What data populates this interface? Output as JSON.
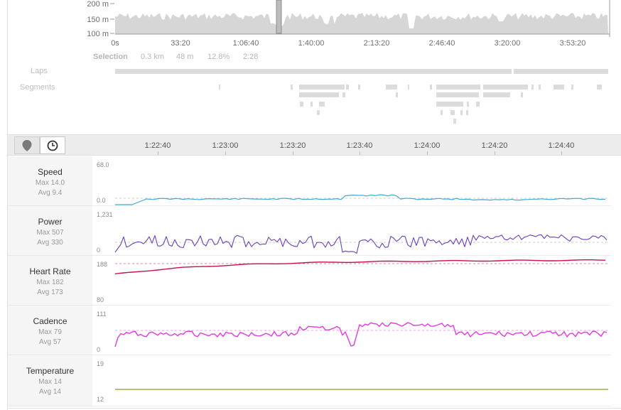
{
  "elevation": {
    "y_labels": [
      "200 m",
      "150 m",
      "100 m"
    ],
    "x_labels": [
      "0s",
      "33:20",
      "1:06:40",
      "1:40:00",
      "2:13:20",
      "2:46:40",
      "3:20:00",
      "3:53:20"
    ]
  },
  "selection": {
    "title": "Selection",
    "distance": "0.3 km",
    "elevation": "48 m",
    "grade": "12.8%",
    "time": "2:28"
  },
  "rows": {
    "laps": "Laps",
    "segments": "Segments"
  },
  "toolbar": {
    "map_icon": "map-pin-icon",
    "time_icon": "clock-icon",
    "active": "time"
  },
  "time_axis": [
    "1:22:40",
    "1:23:00",
    "1:23:20",
    "1:23:40",
    "1:24:00",
    "1:24:20",
    "1:24:40"
  ],
  "streams": [
    {
      "key": "speed",
      "name": "Speed",
      "max": "Max 14.0",
      "avg": "Avg 9.4",
      "y_max": "68.0",
      "y_min": "0.0",
      "color": "#3fa9d1"
    },
    {
      "key": "power",
      "name": "Power",
      "max": "Max 507",
      "avg": "Avg 330",
      "y_max": "1,231",
      "y_min": "0",
      "color": "#6b3fbf"
    },
    {
      "key": "hr",
      "name": "Heart Rate",
      "max": "Max 182",
      "avg": "Avg 173",
      "y_max": "188",
      "y_min": "80",
      "color": "#c8104a"
    },
    {
      "key": "cadence",
      "name": "Cadence",
      "max": "Max 79",
      "avg": "Avg 57",
      "y_max": "111",
      "y_min": "0",
      "color": "#e23be0"
    },
    {
      "key": "temp",
      "name": "Temperature",
      "max": "Max 14",
      "avg": "Avg 14",
      "y_max": "19",
      "y_min": "12",
      "color": "#a7a84a"
    }
  ]
}
